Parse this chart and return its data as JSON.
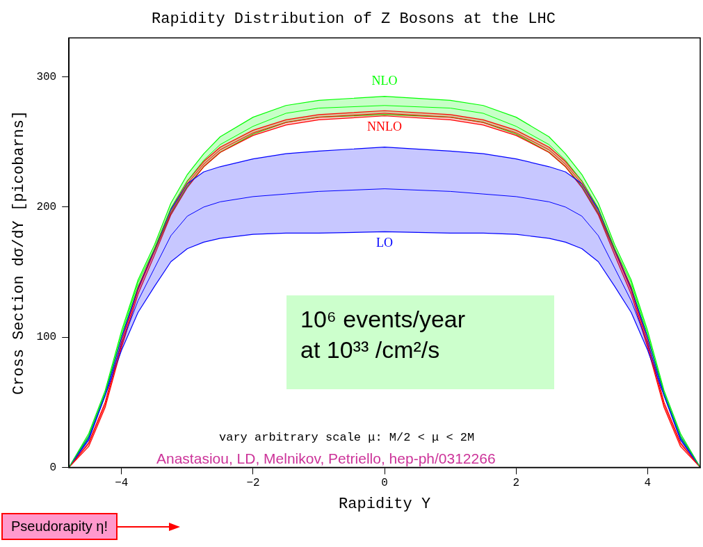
{
  "chart_data": {
    "type": "line",
    "title": "Rapidity Distribution of Z Bosons at the LHC",
    "xlabel": "Rapidity Y",
    "ylabel": "Cross Section dσ/dY [picobarns]",
    "x": [
      -4.8,
      -4.5,
      -4.25,
      -4,
      -3.75,
      -3.5,
      -3.25,
      -3,
      -2.75,
      -2.5,
      -2,
      -1.5,
      -1,
      0,
      1,
      1.5,
      2,
      2.5,
      2.75,
      3,
      3.25,
      3.5,
      3.75,
      4,
      4.25,
      4.5,
      4.8
    ],
    "series": [
      {
        "name": "NLO",
        "color": "#00ff00",
        "values": [
          0,
          24,
          57,
          102,
          142,
          168,
          199,
          220,
          236,
          248,
          262,
          272,
          276,
          278,
          276,
          272,
          262,
          248,
          236,
          220,
          199,
          168,
          142,
          102,
          57,
          24,
          0
        ],
        "lower": [
          0,
          23,
          55,
          100,
          139,
          166,
          195,
          216,
          231,
          242,
          256,
          265,
          269,
          271,
          269,
          265,
          256,
          242,
          231,
          216,
          195,
          166,
          139,
          100,
          55,
          23,
          0
        ],
        "upper": [
          0,
          26,
          59,
          105,
          144,
          171,
          203,
          225,
          241,
          254,
          269,
          278,
          282,
          285,
          282,
          278,
          269,
          254,
          241,
          225,
          203,
          171,
          144,
          105,
          59,
          26,
          0
        ]
      },
      {
        "name": "NNLO",
        "color": "#ff0000",
        "values": [
          0,
          18,
          48,
          94,
          136,
          166,
          196,
          218,
          233,
          244,
          257,
          265,
          269,
          272,
          269,
          265,
          257,
          244,
          233,
          218,
          196,
          166,
          136,
          94,
          48,
          18,
          0
        ],
        "lower": [
          0,
          16,
          46,
          92,
          133,
          163,
          194,
          215,
          231,
          242,
          255,
          263,
          267,
          270,
          267,
          263,
          255,
          242,
          231,
          215,
          194,
          163,
          133,
          92,
          46,
          16,
          0
        ],
        "upper": [
          0,
          19,
          50,
          97,
          138,
          168,
          199,
          220,
          235,
          246,
          259,
          267,
          271,
          274,
          271,
          267,
          259,
          246,
          235,
          220,
          199,
          168,
          138,
          97,
          50,
          19,
          0
        ]
      },
      {
        "name": "LO",
        "color": "#0000ff",
        "values": [
          0,
          22,
          56,
          95,
          128,
          153,
          178,
          193,
          200,
          204,
          208,
          210,
          212,
          214,
          212,
          210,
          208,
          204,
          200,
          193,
          178,
          153,
          128,
          95,
          56,
          22,
          0
        ],
        "lower": [
          0,
          21,
          55,
          90,
          119,
          139,
          158,
          168,
          173,
          176,
          179,
          180,
          180,
          181,
          180,
          180,
          179,
          176,
          173,
          168,
          158,
          139,
          119,
          90,
          55,
          21,
          0
        ],
        "upper": [
          0,
          24,
          57,
          100,
          137,
          167,
          198,
          218,
          227,
          231,
          237,
          241,
          243,
          246,
          243,
          241,
          237,
          231,
          227,
          218,
          198,
          167,
          137,
          100,
          57,
          24,
          0
        ]
      }
    ],
    "xlim": [
      -4.8,
      4.8
    ],
    "xticks": [
      -4,
      -2,
      0,
      2,
      4
    ],
    "ylim": [
      0,
      330
    ],
    "yticks": [
      0,
      100,
      200,
      300
    ],
    "annotations": [
      "10⁶ events/year\nat 10³³ /cm²/s",
      "vary arbitrary scale μ:  M/2 < μ < 2M",
      "Anastasiou, LD, Melnikov, Petriello, hep-ph/0312266",
      "Pseudorapity η!"
    ]
  }
}
